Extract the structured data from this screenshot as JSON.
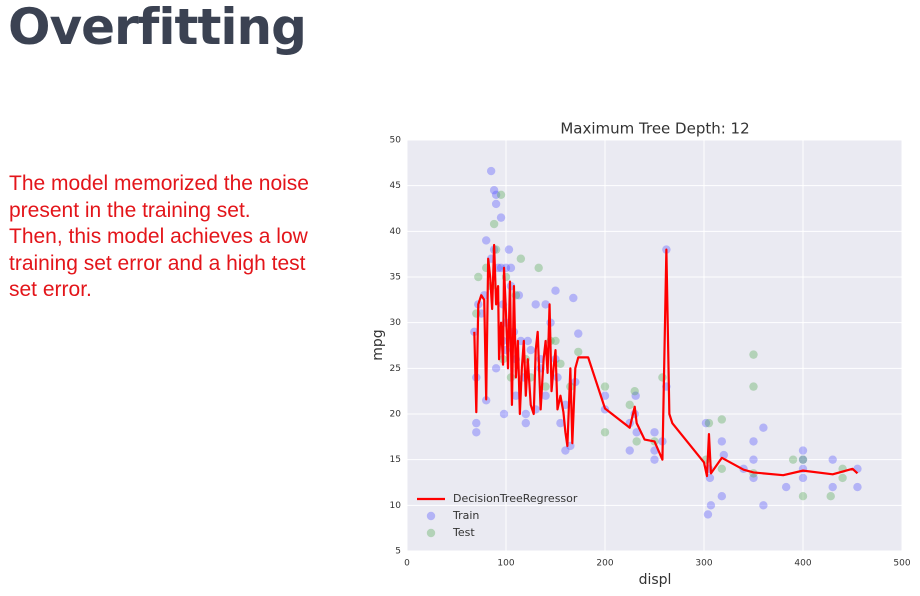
{
  "title": "Overfitting",
  "body": [
    "The model memorized the noise",
    "present in the training set.",
    "Then, this model achieves a low",
    "training set error and a high test",
    "set error."
  ],
  "chart_data": {
    "type": "scatter",
    "title": "Maximum Tree Depth: 12",
    "x_label": "displ",
    "y_label": "mpg",
    "xlim": [
      0,
      500
    ],
    "xticks": [
      0,
      100,
      200,
      300,
      400,
      500
    ],
    "ylim": [
      5,
      50
    ],
    "yticks": [
      5,
      10,
      15,
      20,
      25,
      30,
      35,
      40,
      45,
      50
    ],
    "grid": true,
    "legend": "lower left",
    "series": [
      {
        "name": "DecisionTreeRegressor",
        "type": "line",
        "color": "#ff0000",
        "x": [
          68,
          70,
          72,
          75,
          78,
          80,
          82,
          84,
          86,
          88,
          90,
          92,
          93,
          95,
          97,
          98,
          100,
          102,
          104,
          106,
          108,
          110,
          112,
          114,
          116,
          118,
          120,
          122,
          125,
          128,
          130,
          132,
          135,
          138,
          140,
          142,
          144,
          146,
          148,
          150,
          152,
          155,
          158,
          160,
          162,
          165,
          167,
          170,
          173,
          183,
          200,
          225,
          230,
          232,
          240,
          250,
          258,
          262,
          265,
          268,
          300,
          303,
          305,
          307,
          318,
          340,
          350,
          380,
          400,
          430,
          450,
          455
        ],
        "values": [
          29,
          20.2,
          32,
          33,
          32.5,
          21.6,
          37,
          35,
          31.5,
          38.5,
          32,
          34,
          26,
          30,
          25.4,
          36,
          31,
          25,
          34.5,
          21,
          34,
          24,
          28,
          20,
          25,
          28,
          22,
          26,
          21,
          20,
          27,
          29,
          20.5,
          26,
          28,
          24.5,
          32,
          22.5,
          25,
          27,
          20.5,
          22,
          20.2,
          18,
          16.5,
          25,
          16.8,
          25,
          26.2,
          26.2,
          20.6,
          18.5,
          20.8,
          19,
          17.2,
          17,
          15,
          38,
          20,
          19,
          14.7,
          13.2,
          17.8,
          13.5,
          15.2,
          13.9,
          13.6,
          13.3,
          13.8,
          13.4,
          14,
          13.5
        ]
      },
      {
        "name": "Train",
        "type": "scatter",
        "color": "#4c4cff",
        "x": [
          68,
          70,
          70,
          70,
          72,
          75,
          78,
          80,
          80,
          85,
          85,
          88,
          88,
          90,
          90,
          90,
          92,
          95,
          95,
          97,
          97,
          98,
          100,
          100,
          100,
          103,
          105,
          105,
          108,
          110,
          110,
          113,
          115,
          118,
          120,
          120,
          122,
          125,
          130,
          130,
          135,
          135,
          140,
          140,
          145,
          150,
          150,
          152,
          155,
          160,
          160,
          165,
          168,
          170,
          173,
          200,
          200,
          225,
          225,
          230,
          231,
          232,
          250,
          250,
          250,
          258,
          262,
          262,
          302,
          304,
          305,
          306,
          307,
          318,
          318,
          320,
          340,
          350,
          350,
          350,
          360,
          360,
          383,
          400,
          400,
          400,
          400,
          430,
          430,
          455,
          455
        ],
        "values": [
          29,
          19,
          18,
          24,
          32,
          31,
          33,
          39,
          21.5,
          46.6,
          37,
          44.5,
          38,
          44,
          43,
          25,
          36,
          36,
          41.5,
          32,
          28,
          20,
          36,
          30,
          27,
          38,
          36,
          34,
          29,
          26,
          22,
          33,
          28,
          24,
          19,
          20,
          28,
          27,
          32,
          20.5,
          26,
          25,
          22,
          32,
          30,
          26,
          33.5,
          24,
          19,
          21,
          16,
          16.5,
          32.7,
          23.5,
          28.8,
          20.5,
          22,
          16,
          19,
          20,
          22,
          18,
          16,
          15,
          18,
          17,
          38,
          23,
          19,
          9,
          14,
          13,
          10,
          11,
          17,
          15.5,
          14,
          17,
          13,
          15,
          10,
          18.5,
          12,
          16,
          15,
          13,
          14,
          15,
          12,
          14,
          12
        ]
      },
      {
        "name": "Test",
        "type": "scatter",
        "color": "#4ca64c",
        "x": [
          70,
          72,
          80,
          85,
          88,
          90,
          95,
          97,
          100,
          105,
          110,
          115,
          120,
          125,
          133,
          140,
          145,
          150,
          155,
          165,
          173,
          200,
          200,
          225,
          230,
          232,
          250,
          258,
          302,
          305,
          318,
          318,
          350,
          350,
          350,
          390,
          400,
          400,
          428,
          440,
          440
        ],
        "values": [
          31,
          35,
          36,
          34,
          40.8,
          38,
          44,
          26,
          35,
          24,
          33,
          37,
          26,
          24,
          36,
          23,
          28,
          28,
          25.5,
          23,
          26.8,
          23,
          18,
          21,
          22.5,
          17,
          17,
          24,
          15,
          19,
          19.4,
          14,
          26.5,
          23,
          13.5,
          15,
          11,
          15,
          11,
          14,
          13
        ]
      }
    ]
  }
}
